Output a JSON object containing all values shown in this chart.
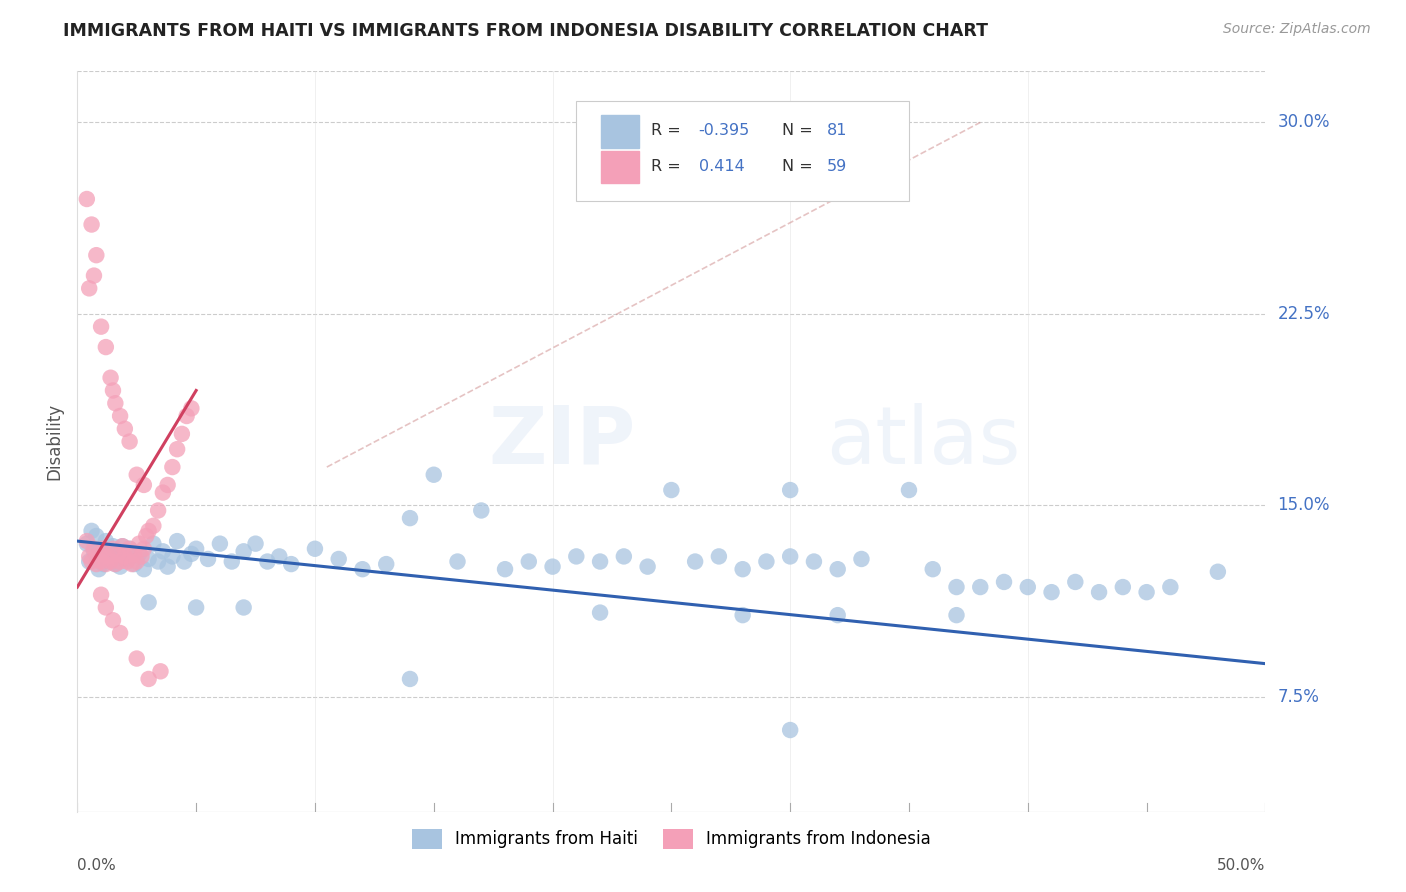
{
  "title": "IMMIGRANTS FROM HAITI VS IMMIGRANTS FROM INDONESIA DISABILITY CORRELATION CHART",
  "source": "Source: ZipAtlas.com",
  "ylabel": "Disability",
  "yticks": [
    0.075,
    0.15,
    0.225,
    0.3
  ],
  "ytick_labels": [
    "7.5%",
    "15.0%",
    "22.5%",
    "30.0%"
  ],
  "xlim": [
    0.0,
    0.5
  ],
  "ylim": [
    0.03,
    0.32
  ],
  "legend_haiti_r": "-0.395",
  "legend_haiti_n": "81",
  "legend_indonesia_r": "0.414",
  "legend_indonesia_n": "59",
  "haiti_color": "#a8c4e0",
  "indonesia_color": "#f4a0b8",
  "haiti_line_color": "#3060b0",
  "indonesia_line_color": "#d04060",
  "haiti_scatter": [
    [
      0.004,
      0.135
    ],
    [
      0.005,
      0.128
    ],
    [
      0.006,
      0.14
    ],
    [
      0.007,
      0.132
    ],
    [
      0.008,
      0.138
    ],
    [
      0.009,
      0.125
    ],
    [
      0.01,
      0.133
    ],
    [
      0.011,
      0.127
    ],
    [
      0.012,
      0.136
    ],
    [
      0.013,
      0.13
    ],
    [
      0.014,
      0.128
    ],
    [
      0.015,
      0.134
    ],
    [
      0.016,
      0.127
    ],
    [
      0.017,
      0.132
    ],
    [
      0.018,
      0.126
    ],
    [
      0.019,
      0.134
    ],
    [
      0.02,
      0.129
    ],
    [
      0.022,
      0.133
    ],
    [
      0.024,
      0.127
    ],
    [
      0.026,
      0.131
    ],
    [
      0.028,
      0.125
    ],
    [
      0.03,
      0.129
    ],
    [
      0.032,
      0.135
    ],
    [
      0.034,
      0.128
    ],
    [
      0.036,
      0.132
    ],
    [
      0.038,
      0.126
    ],
    [
      0.04,
      0.13
    ],
    [
      0.042,
      0.136
    ],
    [
      0.045,
      0.128
    ],
    [
      0.048,
      0.131
    ],
    [
      0.05,
      0.133
    ],
    [
      0.055,
      0.129
    ],
    [
      0.06,
      0.135
    ],
    [
      0.065,
      0.128
    ],
    [
      0.07,
      0.132
    ],
    [
      0.075,
      0.135
    ],
    [
      0.08,
      0.128
    ],
    [
      0.085,
      0.13
    ],
    [
      0.09,
      0.127
    ],
    [
      0.1,
      0.133
    ],
    [
      0.11,
      0.129
    ],
    [
      0.12,
      0.125
    ],
    [
      0.13,
      0.127
    ],
    [
      0.14,
      0.145
    ],
    [
      0.15,
      0.162
    ],
    [
      0.16,
      0.128
    ],
    [
      0.17,
      0.148
    ],
    [
      0.18,
      0.125
    ],
    [
      0.19,
      0.128
    ],
    [
      0.2,
      0.126
    ],
    [
      0.21,
      0.13
    ],
    [
      0.22,
      0.128
    ],
    [
      0.23,
      0.13
    ],
    [
      0.24,
      0.126
    ],
    [
      0.25,
      0.156
    ],
    [
      0.26,
      0.128
    ],
    [
      0.27,
      0.13
    ],
    [
      0.28,
      0.125
    ],
    [
      0.29,
      0.128
    ],
    [
      0.3,
      0.13
    ],
    [
      0.3,
      0.156
    ],
    [
      0.31,
      0.128
    ],
    [
      0.32,
      0.125
    ],
    [
      0.33,
      0.129
    ],
    [
      0.35,
      0.156
    ],
    [
      0.36,
      0.125
    ],
    [
      0.37,
      0.118
    ],
    [
      0.38,
      0.118
    ],
    [
      0.39,
      0.12
    ],
    [
      0.4,
      0.118
    ],
    [
      0.41,
      0.116
    ],
    [
      0.42,
      0.12
    ],
    [
      0.43,
      0.116
    ],
    [
      0.44,
      0.118
    ],
    [
      0.45,
      0.116
    ],
    [
      0.46,
      0.118
    ],
    [
      0.48,
      0.124
    ],
    [
      0.03,
      0.112
    ],
    [
      0.05,
      0.11
    ],
    [
      0.07,
      0.11
    ],
    [
      0.22,
      0.108
    ],
    [
      0.28,
      0.107
    ],
    [
      0.32,
      0.107
    ],
    [
      0.37,
      0.107
    ],
    [
      0.3,
      0.062
    ],
    [
      0.14,
      0.082
    ]
  ],
  "indonesia_scatter": [
    [
      0.004,
      0.136
    ],
    [
      0.005,
      0.13
    ],
    [
      0.006,
      0.128
    ],
    [
      0.007,
      0.133
    ],
    [
      0.008,
      0.127
    ],
    [
      0.009,
      0.131
    ],
    [
      0.01,
      0.128
    ],
    [
      0.011,
      0.133
    ],
    [
      0.012,
      0.127
    ],
    [
      0.013,
      0.13
    ],
    [
      0.014,
      0.128
    ],
    [
      0.015,
      0.133
    ],
    [
      0.016,
      0.127
    ],
    [
      0.017,
      0.131
    ],
    [
      0.018,
      0.128
    ],
    [
      0.019,
      0.134
    ],
    [
      0.02,
      0.13
    ],
    [
      0.021,
      0.128
    ],
    [
      0.022,
      0.133
    ],
    [
      0.023,
      0.127
    ],
    [
      0.024,
      0.131
    ],
    [
      0.025,
      0.128
    ],
    [
      0.026,
      0.135
    ],
    [
      0.027,
      0.13
    ],
    [
      0.028,
      0.133
    ],
    [
      0.029,
      0.138
    ],
    [
      0.03,
      0.14
    ],
    [
      0.032,
      0.142
    ],
    [
      0.034,
      0.148
    ],
    [
      0.036,
      0.155
    ],
    [
      0.038,
      0.158
    ],
    [
      0.04,
      0.165
    ],
    [
      0.042,
      0.172
    ],
    [
      0.044,
      0.178
    ],
    [
      0.046,
      0.185
    ],
    [
      0.048,
      0.188
    ],
    [
      0.004,
      0.27
    ],
    [
      0.006,
      0.26
    ],
    [
      0.007,
      0.24
    ],
    [
      0.008,
      0.248
    ],
    [
      0.01,
      0.22
    ],
    [
      0.012,
      0.212
    ],
    [
      0.014,
      0.2
    ],
    [
      0.015,
      0.195
    ],
    [
      0.016,
      0.19
    ],
    [
      0.018,
      0.185
    ],
    [
      0.02,
      0.18
    ],
    [
      0.022,
      0.175
    ],
    [
      0.025,
      0.162
    ],
    [
      0.028,
      0.158
    ],
    [
      0.005,
      0.235
    ],
    [
      0.01,
      0.115
    ],
    [
      0.012,
      0.11
    ],
    [
      0.015,
      0.105
    ],
    [
      0.018,
      0.1
    ],
    [
      0.025,
      0.09
    ],
    [
      0.03,
      0.082
    ],
    [
      0.035,
      0.085
    ]
  ],
  "haiti_line": [
    [
      0.0,
      0.136
    ],
    [
      0.5,
      0.088
    ]
  ],
  "indonesia_line": [
    [
      0.0,
      0.118
    ],
    [
      0.05,
      0.195
    ]
  ],
  "diag_line": [
    [
      0.105,
      0.165
    ],
    [
      0.38,
      0.3
    ]
  ]
}
